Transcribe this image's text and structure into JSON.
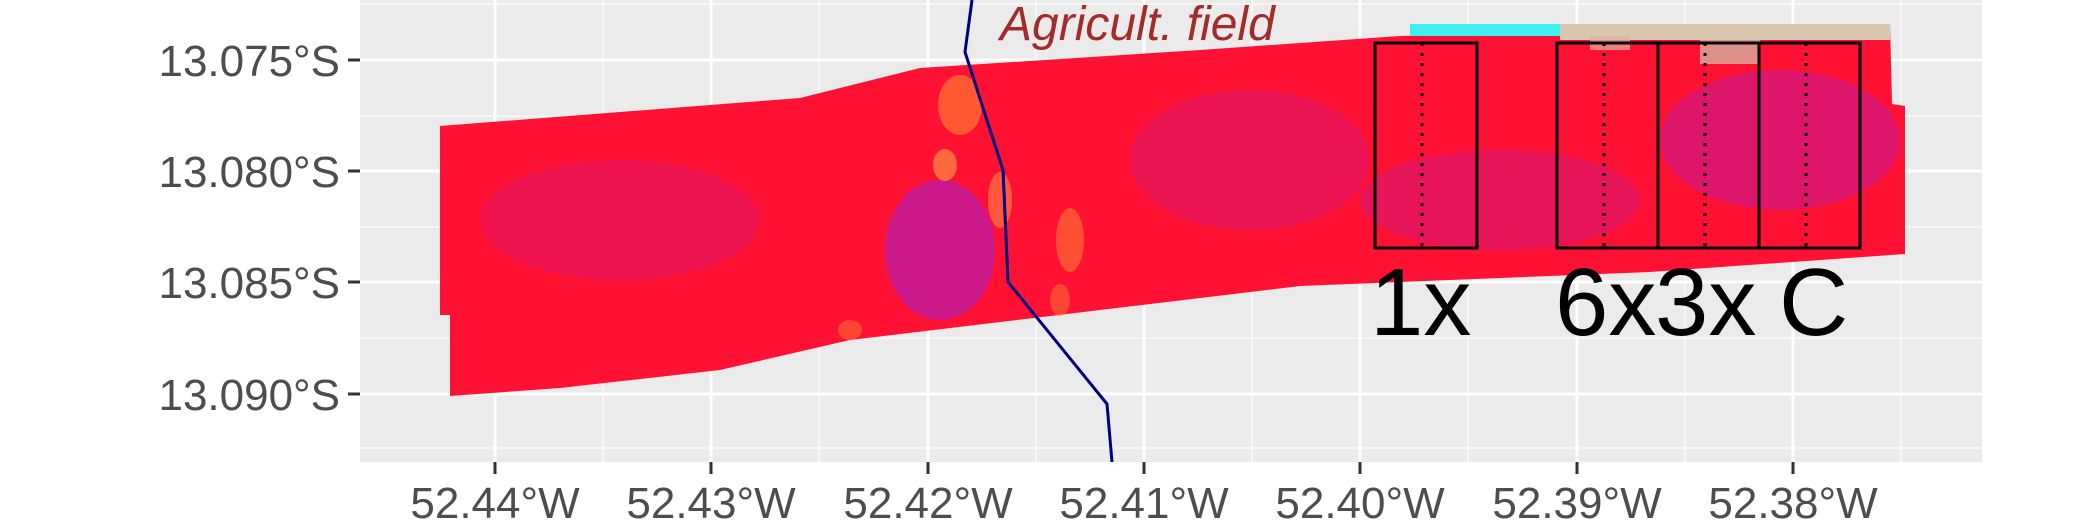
{
  "map": {
    "colors": {
      "panel_background": "#ebebeb",
      "gridline": "#ffffff",
      "raster_base": "#ff1133",
      "raster_purple": "#a020d0",
      "raster_orange": "#ff6a33",
      "raster_cyan": "#40f0f0",
      "raster_tan": "#d8c8b0",
      "boundary_line": "#000080",
      "plot_outline": "#000000",
      "region_label": "#a52a2a"
    },
    "x_axis": {
      "ticks": [
        {
          "value": -52.44,
          "label": "52.44°W"
        },
        {
          "value": -52.43,
          "label": "52.43°W"
        },
        {
          "value": -52.42,
          "label": "52.42°W"
        },
        {
          "value": -52.41,
          "label": "52.41°W"
        },
        {
          "value": -52.4,
          "label": "52.40°W"
        },
        {
          "value": -52.39,
          "label": "52.39°W"
        },
        {
          "value": -52.38,
          "label": "52.38°W"
        }
      ]
    },
    "y_axis": {
      "ticks": [
        {
          "value": -13.075,
          "label": "13.075°S"
        },
        {
          "value": -13.08,
          "label": "13.080°S"
        },
        {
          "value": -13.085,
          "label": "13.085°S"
        },
        {
          "value": -13.09,
          "label": "13.090°S"
        }
      ]
    },
    "region_label": "Agricult. field",
    "plots": [
      {
        "label": "1x"
      },
      {
        "label": "6x"
      },
      {
        "label": "3x"
      },
      {
        "label": "C"
      }
    ]
  }
}
